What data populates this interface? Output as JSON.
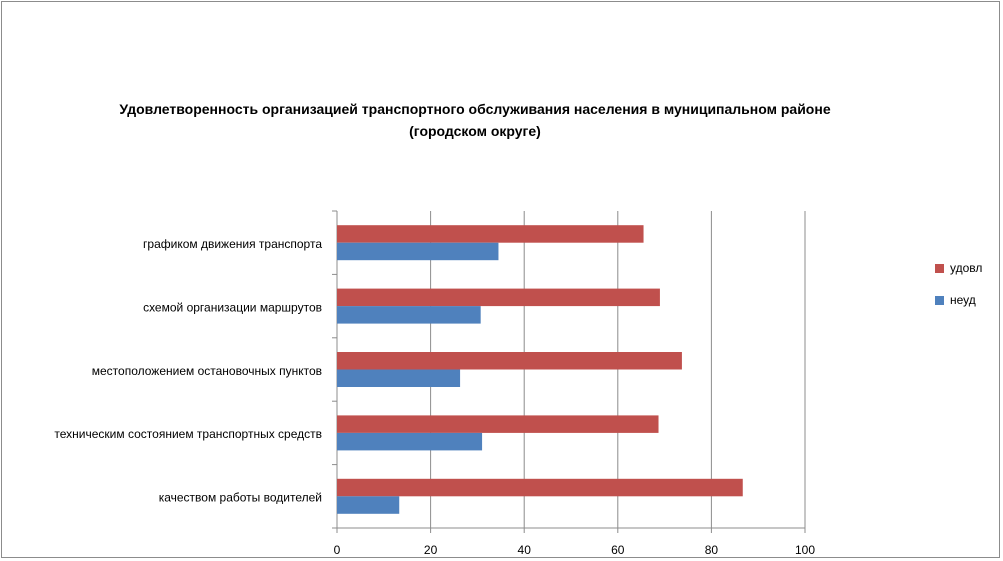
{
  "chart_data": {
    "type": "bar",
    "orientation": "horizontal",
    "title": "Удовлетворенность организацией транспортного обслуживания населения в муниципальном районе (городском округе)",
    "categories": [
      "графиком движения транспорта",
      "схемой организации маршрутов",
      "местоположением остановочных пунктов",
      "техническим состоянием транспортных средств",
      "качеством работы водителей"
    ],
    "series": [
      {
        "name": "удовл",
        "color": "#c0504d",
        "values": [
          65.5,
          69,
          73.7,
          68.7,
          86.7
        ]
      },
      {
        "name": "неуд",
        "color": "#4f81bd",
        "values": [
          34.5,
          30.7,
          26.3,
          31,
          13.3
        ]
      }
    ],
    "xlim": [
      0,
      100
    ],
    "xticks": [
      0,
      20,
      40,
      60,
      80,
      100
    ],
    "xtick_labels": [
      "0",
      "20",
      "40",
      "60",
      "80",
      "100"
    ],
    "grid": true,
    "legend_position": "right"
  }
}
